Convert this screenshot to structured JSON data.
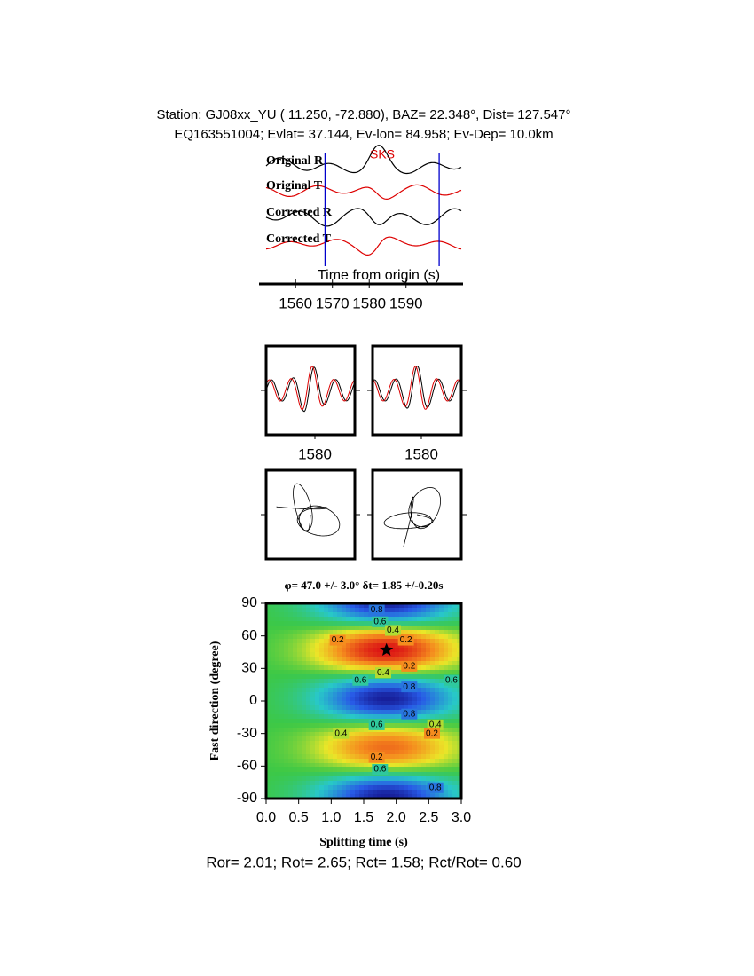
{
  "header": {
    "line1": "Station: GJ08xx_YU (  11.250,  -72.880), BAZ=  22.348°, Dist=  127.547°",
    "line2": "EQ163551004; Evlat=  37.144, Ev-lon=  84.958; Ev-Dep= 10.0km"
  },
  "waveforms": {
    "phase": "SKS",
    "traces": [
      "Original R",
      "Original T",
      "Corrected R",
      "Corrected T"
    ],
    "xlabel": "Time from origin (s)",
    "xlim": [
      1552,
      1605
    ],
    "xticks": [
      1560,
      1570,
      1580,
      1590
    ],
    "window": [
      1568,
      1599
    ]
  },
  "panels": {
    "tick_labels": [
      1580,
      1580
    ]
  },
  "chart_data": {
    "type": "contour",
    "title": "φ= 47.0 +/- 3.0° δt= 1.85 +/-0.20s",
    "xlabel": "Splitting time (s)",
    "ylabel": "Fast direction (degree)",
    "xlim": [
      0,
      3
    ],
    "ylim": [
      -90,
      90
    ],
    "xticks": [
      {
        "value": 0,
        "label": "0.0"
      },
      {
        "value": 0.5,
        "label": "0.5"
      },
      {
        "value": 1,
        "label": "1.0"
      },
      {
        "value": 1.5,
        "label": "1.5"
      },
      {
        "value": 2,
        "label": "2.0"
      },
      {
        "value": 2.5,
        "label": "2.5"
      },
      {
        "value": 3,
        "label": "3.0"
      }
    ],
    "yticks": [
      -90,
      -60,
      -30,
      0,
      30,
      60,
      90
    ],
    "best": {
      "x": 1.85,
      "y": 47
    },
    "contour_labels": [
      {
        "x": 1.7,
        "y": 84,
        "level": 0.8
      },
      {
        "x": 1.75,
        "y": 73,
        "level": 0.6
      },
      {
        "x": 1.95,
        "y": 65,
        "level": 0.4
      },
      {
        "x": 1.1,
        "y": 56,
        "level": 0.2
      },
      {
        "x": 2.15,
        "y": 56,
        "level": 0.2
      },
      {
        "x": 2.2,
        "y": 32,
        "level": 0.2
      },
      {
        "x": 1.8,
        "y": 26,
        "level": 0.4
      },
      {
        "x": 1.45,
        "y": 19,
        "level": 0.6
      },
      {
        "x": 2.2,
        "y": 13,
        "level": 0.8
      },
      {
        "x": 2.85,
        "y": 19,
        "level": 0.6
      },
      {
        "x": 2.2,
        "y": -12,
        "level": 0.8
      },
      {
        "x": 1.7,
        "y": -22,
        "level": 0.6
      },
      {
        "x": 1.15,
        "y": -30,
        "level": 0.4
      },
      {
        "x": 2.6,
        "y": -22,
        "level": 0.4
      },
      {
        "x": 2.55,
        "y": -30,
        "level": 0.2
      },
      {
        "x": 1.7,
        "y": -52,
        "level": 0.2
      },
      {
        "x": 1.75,
        "y": -63,
        "level": 0.6
      },
      {
        "x": 2.6,
        "y": -80,
        "level": 0.8
      }
    ]
  },
  "footer": "Ror= 2.01; Rot= 2.65; Rct= 1.58; Rct/Rot= 0.60"
}
